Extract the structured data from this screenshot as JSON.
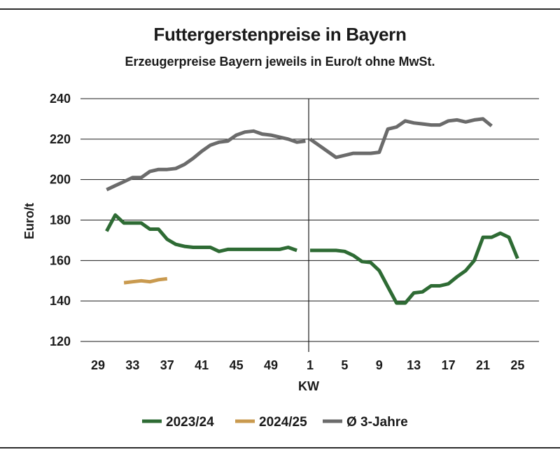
{
  "header": {
    "title": "Futtergerstenpreise in Bayern",
    "subtitle": "Erzeugerpreise Bayern jeweils in Euro/t ohne MwSt."
  },
  "chart_data": {
    "type": "line",
    "title": "Futtergerstenpreise in Bayern",
    "subtitle": "Erzeugerpreise Bayern jeweils in Euro/t ohne MwSt.",
    "xlabel": "KW",
    "ylabel": "Euro/t",
    "ylim": [
      120,
      240
    ],
    "yticks": [
      120,
      140,
      160,
      180,
      200,
      220,
      240
    ],
    "grid": "horizontal",
    "legend_position": "bottom",
    "x_labels": [
      "29",
      "33",
      "37",
      "41",
      "45",
      "49",
      "1",
      "5",
      "9",
      "13",
      "17",
      "21",
      "25"
    ],
    "season_break_before_week": 1,
    "series": [
      {
        "name": "2023/24",
        "color": "#2e6b34",
        "points": [
          [
            30,
            174.5
          ],
          [
            31,
            182.5
          ],
          [
            32,
            178.5
          ],
          [
            33,
            178.5
          ],
          [
            34,
            178.5
          ],
          [
            35,
            175.5
          ],
          [
            36,
            175.5
          ],
          [
            37,
            170.5
          ],
          [
            38,
            168
          ],
          [
            39,
            167
          ],
          [
            40,
            166.5
          ],
          [
            41,
            166.5
          ],
          [
            42,
            166.5
          ],
          [
            43,
            164.5
          ],
          [
            44,
            165.5
          ],
          [
            45,
            165.5
          ],
          [
            46,
            165.5
          ],
          [
            47,
            165.5
          ],
          [
            48,
            165.5
          ],
          [
            49,
            165.5
          ],
          [
            50,
            165.5
          ],
          [
            51,
            166.5
          ],
          [
            52,
            165
          ],
          [
            1,
            165
          ],
          [
            2,
            165
          ],
          [
            3,
            165
          ],
          [
            4,
            165
          ],
          [
            5,
            164.5
          ],
          [
            6,
            162.5
          ],
          [
            7,
            159.5
          ],
          [
            8,
            159
          ],
          [
            9,
            155
          ],
          [
            10,
            147
          ],
          [
            11,
            139
          ],
          [
            12,
            139
          ],
          [
            13,
            144
          ],
          [
            14,
            144.5
          ],
          [
            15,
            147.5
          ],
          [
            16,
            147.5
          ],
          [
            17,
            148.5
          ],
          [
            18,
            152
          ],
          [
            19,
            155
          ],
          [
            20,
            160
          ],
          [
            21,
            171.5
          ],
          [
            22,
            171.5
          ],
          [
            23,
            173.5
          ],
          [
            24,
            171.5
          ],
          [
            25,
            161
          ]
        ]
      },
      {
        "name": "2024/25",
        "color": "#c99a4f",
        "points": [
          [
            32,
            149
          ],
          [
            33,
            149.5
          ],
          [
            34,
            150
          ],
          [
            35,
            149.5
          ],
          [
            36,
            150.5
          ],
          [
            37,
            151
          ]
        ]
      },
      {
        "name": "Ø 3-Jahre",
        "color": "#6b6b6b",
        "points": [
          [
            30,
            195
          ],
          [
            31,
            197
          ],
          [
            32,
            199
          ],
          [
            33,
            201
          ],
          [
            34,
            201
          ],
          [
            35,
            204
          ],
          [
            36,
            205
          ],
          [
            37,
            205
          ],
          [
            38,
            205.5
          ],
          [
            39,
            207.5
          ],
          [
            40,
            210.5
          ],
          [
            41,
            214
          ],
          [
            42,
            217
          ],
          [
            43,
            218.5
          ],
          [
            44,
            219
          ],
          [
            45,
            222
          ],
          [
            46,
            223.5
          ],
          [
            47,
            224
          ],
          [
            48,
            222.5
          ],
          [
            49,
            222
          ],
          [
            50,
            221
          ],
          [
            51,
            220
          ],
          [
            52,
            218.5
          ],
          [
            53,
            219
          ],
          [
            1,
            220
          ],
          [
            2,
            217
          ],
          [
            3,
            214
          ],
          [
            4,
            211
          ],
          [
            5,
            212
          ],
          [
            6,
            213
          ],
          [
            7,
            213
          ],
          [
            8,
            213
          ],
          [
            9,
            213.5
          ],
          [
            10,
            225
          ],
          [
            11,
            226
          ],
          [
            12,
            229
          ],
          [
            13,
            228
          ],
          [
            14,
            227.5
          ],
          [
            15,
            227
          ],
          [
            16,
            227
          ],
          [
            17,
            229
          ],
          [
            18,
            229.5
          ],
          [
            19,
            228.5
          ],
          [
            20,
            229.5
          ],
          [
            21,
            230
          ],
          [
            22,
            226.5
          ]
        ]
      }
    ]
  }
}
